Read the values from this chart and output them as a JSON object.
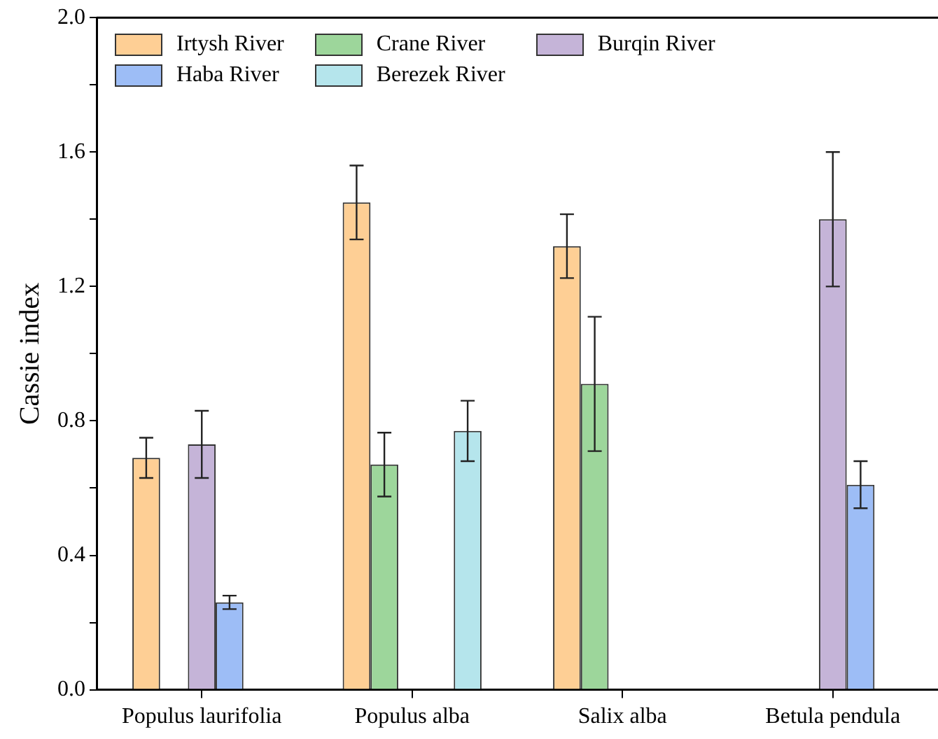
{
  "chart_data": {
    "type": "bar",
    "ylabel": "Cassie index",
    "categories": [
      "Populus laurifolia",
      "Populus alba",
      "Salix alba",
      "Betula pendula"
    ],
    "series": [
      {
        "name": "Irtysh River",
        "color": "#fecf95",
        "values": [
          0.69,
          1.45,
          1.32,
          null
        ],
        "errors": [
          0.06,
          0.11,
          0.095,
          null
        ]
      },
      {
        "name": "Crane River",
        "color": "#9dd69b",
        "values": [
          null,
          0.67,
          0.91,
          null
        ],
        "errors": [
          null,
          0.095,
          0.2,
          null
        ]
      },
      {
        "name": "Burqin River",
        "color": "#c5b4d8",
        "values": [
          0.73,
          null,
          null,
          1.4
        ],
        "errors": [
          0.1,
          null,
          null,
          0.2
        ]
      },
      {
        "name": "Haba River",
        "color": "#9dbdf6",
        "values": [
          0.26,
          null,
          null,
          0.61
        ],
        "errors": [
          0.02,
          null,
          null,
          0.07
        ]
      },
      {
        "name": "Berezek River",
        "color": "#b5e5ec",
        "values": [
          null,
          0.77,
          null,
          null
        ],
        "errors": [
          null,
          0.09,
          null,
          null
        ]
      }
    ],
    "ylim": [
      0,
      2
    ],
    "yticks": [
      {
        "value": 0,
        "label": "0.0"
      },
      {
        "value": 0.2,
        "label": null
      },
      {
        "value": 0.4,
        "label": "0.4"
      },
      {
        "value": 0.6,
        "label": null
      },
      {
        "value": 0.8,
        "label": "0.8"
      },
      {
        "value": 1.0,
        "label": null
      },
      {
        "value": 1.2,
        "label": "1.2"
      },
      {
        "value": 1.4,
        "label": null
      },
      {
        "value": 1.6,
        "label": "1.6"
      },
      {
        "value": 1.8,
        "label": null
      },
      {
        "value": 2.0,
        "label": "2.0"
      }
    ],
    "grid": false,
    "legend": "top left"
  }
}
